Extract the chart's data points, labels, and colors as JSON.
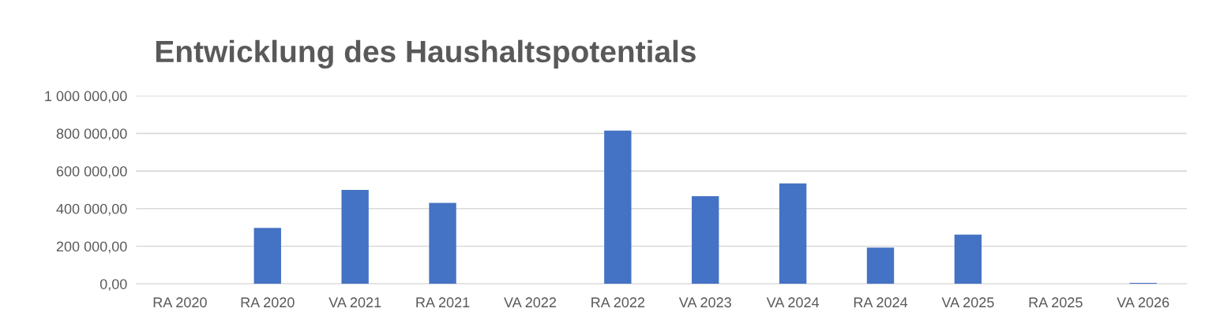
{
  "chart_data": {
    "type": "bar",
    "title": "Entwicklung des Haushaltspotentials",
    "categories": [
      "RA 2020",
      "RA 2020",
      "VA 2021",
      "RA 2021",
      "VA 2022",
      "RA 2022",
      "VA 2023",
      "VA 2024",
      "RA 2024",
      "VA 2025",
      "RA 2025",
      "VA 2026"
    ],
    "values": [
      0,
      297000,
      500000,
      430000,
      0,
      815000,
      466000,
      534000,
      193000,
      262000,
      0,
      5000
    ],
    "color": "#4472c4",
    "ylim": [
      0,
      1000000
    ],
    "yticks": [
      {
        "value": 0,
        "label": "0,00"
      },
      {
        "value": 200000,
        "label": "200 000,00"
      },
      {
        "value": 400000,
        "label": "400 000,00"
      },
      {
        "value": 600000,
        "label": "600 000,00"
      },
      {
        "value": 800000,
        "label": "800 000,00"
      },
      {
        "value": 1000000,
        "label": "1 000 000,00"
      }
    ],
    "grid": "y",
    "legend": false
  }
}
